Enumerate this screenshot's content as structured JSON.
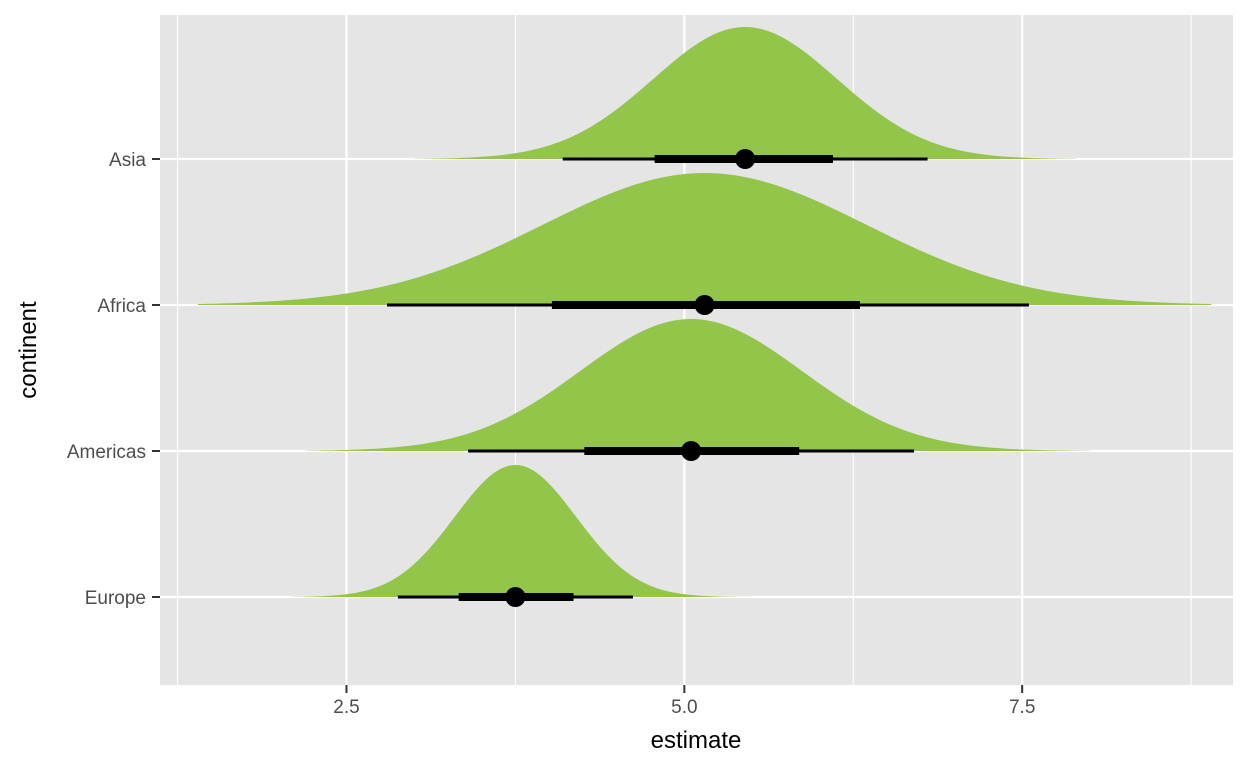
{
  "chart_data": {
    "type": "halfeye",
    "xlabel": "estimate",
    "ylabel": "continent",
    "xlim": [
      1.12,
      9.06
    ],
    "x_ticks": [
      "2.5",
      "5.0",
      "7.5"
    ],
    "x_tick_values": [
      2.5,
      5.0,
      7.5
    ],
    "x_minor_ticks": [
      1.25,
      3.75,
      6.25,
      8.75
    ],
    "categories": [
      "Europe",
      "Americas",
      "Africa",
      "Asia"
    ],
    "series": [
      {
        "name": "Europe",
        "point": 3.75,
        "interval_66": [
          3.33,
          4.18
        ],
        "interval_95": [
          2.88,
          4.62
        ],
        "density_sd": 0.45,
        "density_range": [
          2.1,
          5.5
        ]
      },
      {
        "name": "Americas",
        "point": 5.05,
        "interval_66": [
          4.26,
          5.85
        ],
        "interval_95": [
          3.4,
          6.7
        ],
        "density_sd": 0.82,
        "density_range": [
          2.2,
          8.0
        ]
      },
      {
        "name": "Africa",
        "point": 5.15,
        "interval_66": [
          4.02,
          6.3
        ],
        "interval_95": [
          2.8,
          7.55
        ],
        "density_sd": 1.2,
        "density_range": [
          1.4,
          8.9
        ]
      },
      {
        "name": "Asia",
        "point": 5.45,
        "interval_66": [
          4.78,
          6.1
        ],
        "interval_95": [
          4.1,
          6.8
        ],
        "density_sd": 0.68,
        "density_range": [
          3.0,
          7.9
        ]
      }
    ],
    "fill_color": "#93c54b",
    "panel_background": "#e5e5e5",
    "grid_color": "#ffffff",
    "interval_color": "#000000",
    "grid": true,
    "legend": "none"
  }
}
